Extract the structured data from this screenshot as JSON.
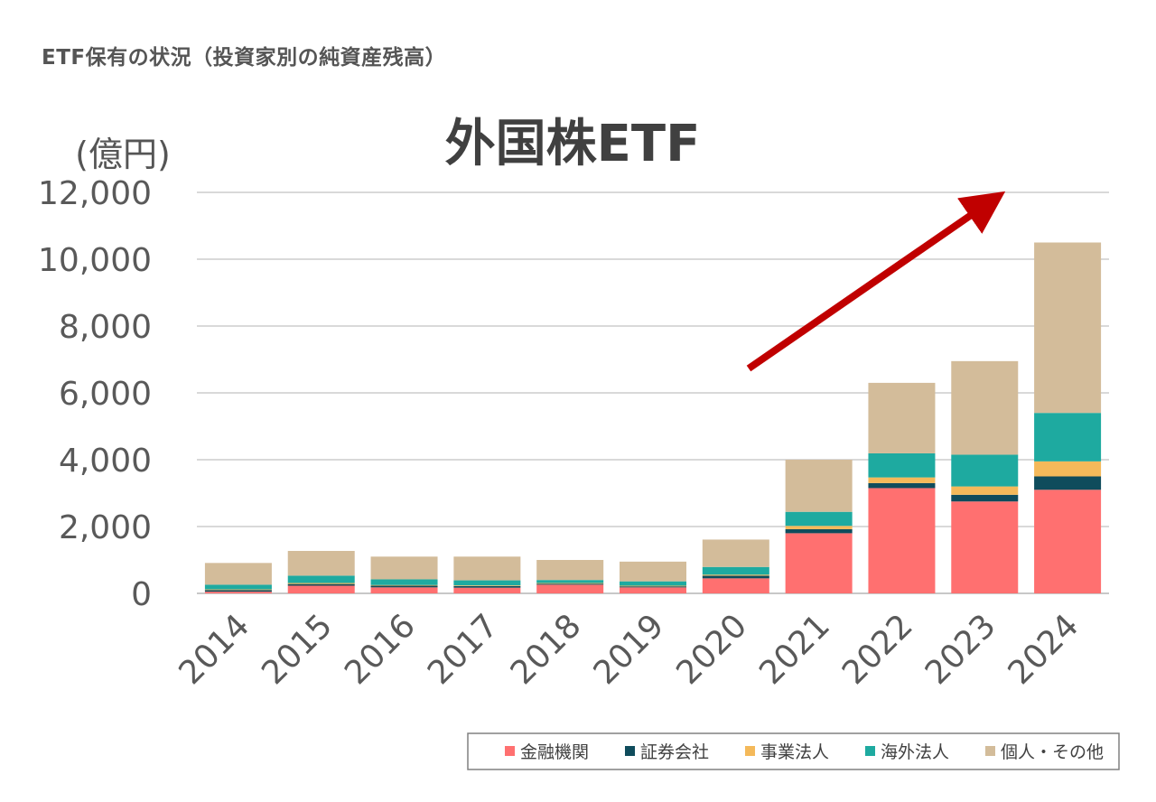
{
  "header": "ETF保有の状況（投資家別の純資産残高）",
  "chart_data": {
    "type": "bar",
    "stacked": true,
    "title": "外国株ETF",
    "unit_label": "(億円)",
    "categories": [
      "2014",
      "2015",
      "2016",
      "2017",
      "2018",
      "2019",
      "2020",
      "2021",
      "2022",
      "2023",
      "2024"
    ],
    "ylim": [
      0,
      12000
    ],
    "yticks": [
      "0",
      "2,000",
      "4,000",
      "6,000",
      "8,000",
      "10,000",
      "12,000"
    ],
    "ytick_values": [
      0,
      2000,
      4000,
      6000,
      8000,
      10000,
      12000
    ],
    "grid": true,
    "legend_position": "bottom-right",
    "series": [
      {
        "name": "金融機関",
        "color": "#FF7070",
        "values": [
          50,
          230,
          180,
          170,
          260,
          180,
          450,
          1800,
          3150,
          2750,
          3100
        ]
      },
      {
        "name": "証券会社",
        "color": "#0F4C5C",
        "values": [
          50,
          50,
          50,
          50,
          30,
          30,
          80,
          120,
          150,
          200,
          400
        ]
      },
      {
        "name": "事業法人",
        "color": "#F4B95A",
        "values": [
          20,
          30,
          20,
          20,
          20,
          20,
          30,
          100,
          170,
          250,
          450
        ]
      },
      {
        "name": "海外法人",
        "color": "#1EAAA0",
        "values": [
          140,
          220,
          170,
          150,
          90,
          130,
          230,
          420,
          720,
          950,
          1450
        ]
      },
      {
        "name": "個人・その他",
        "color": "#D3BC9A",
        "values": [
          650,
          740,
          680,
          710,
          600,
          590,
          820,
          1560,
          2110,
          2800,
          5100
        ]
      }
    ],
    "annotation": {
      "type": "arrow",
      "direction": "up-right",
      "color": "#C00000"
    }
  }
}
